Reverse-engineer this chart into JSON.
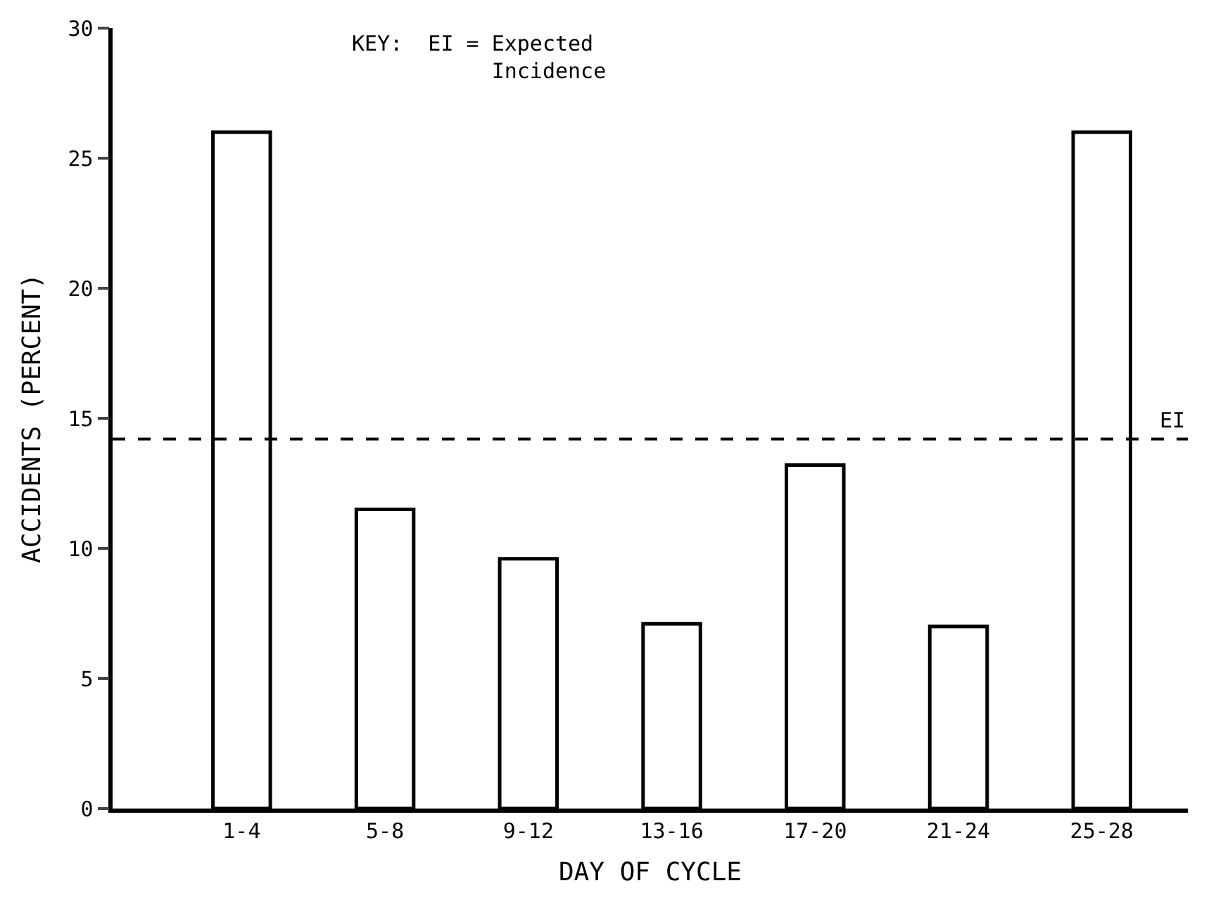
{
  "chart_data": {
    "type": "bar",
    "xlabel": "DAY OF CYCLE",
    "ylabel": "ACCIDENTS (PERCENT)",
    "categories": [
      "1-4",
      "5-8",
      "9-12",
      "13-16",
      "17-20",
      "21-24",
      "25-28"
    ],
    "values": [
      26,
      11.5,
      9.6,
      7.1,
      13.2,
      7.0,
      26
    ],
    "color": "#ffffff",
    "ylim": [
      0,
      30
    ],
    "yticks": [
      0,
      5,
      10,
      15,
      20,
      25,
      30
    ],
    "ref_lines": [
      {
        "axis": "y",
        "value": 14.2,
        "label": "EI",
        "line_style": "dashed",
        "color": "#000000"
      }
    ],
    "annotations": [
      "KEY:  EI = Expected\n           Incidence"
    ]
  }
}
